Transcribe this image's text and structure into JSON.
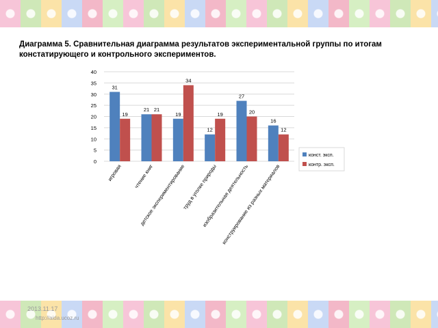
{
  "slide": {
    "title": "Диаграмма 5.  Сравнительная диаграмма результатов экспериментальной группы по итогам констатирующего и контрольного экспериментов.",
    "footer_date": "2013.11.17",
    "footer_url": "http://aida.ucoz.ru"
  },
  "colors": {
    "series1": "#4f81bd",
    "series2": "#c0504d",
    "grid": "#d9d9d9",
    "axis_text": "#000000"
  },
  "chart_data": {
    "type": "bar",
    "categories": [
      "игровая",
      "чтение книг",
      "детское экспериментирование",
      "труд в уголке природы",
      "изобразительная деятельность",
      "конструирование из разных материалов"
    ],
    "series": [
      {
        "name": "конст. эксп.",
        "values": [
          31,
          21,
          19,
          12,
          27,
          16
        ]
      },
      {
        "name": "контр. эксп.",
        "values": [
          19,
          21,
          34,
          19,
          20,
          12
        ]
      }
    ],
    "ylim": [
      0,
      40
    ],
    "yticks": [
      0,
      5,
      10,
      15,
      20,
      25,
      30,
      35,
      40
    ],
    "grid": true,
    "legend": "right",
    "data_labels": true
  }
}
